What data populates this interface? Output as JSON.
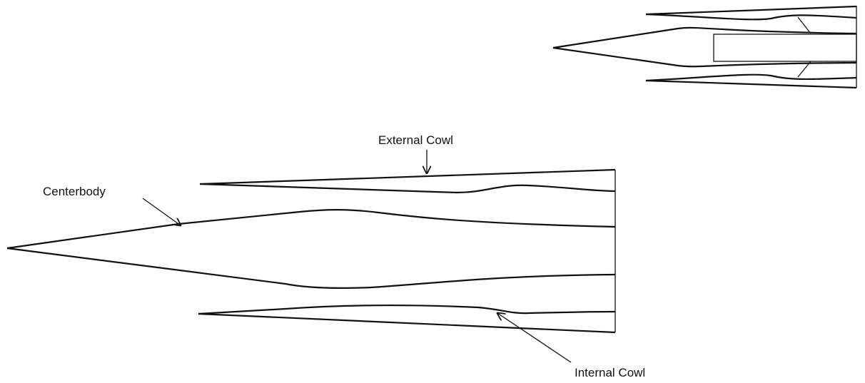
{
  "labels": {
    "external_cowl": "External Cowl",
    "centerbody": "Centerbody",
    "internal_cowl": "Internal Cowl"
  }
}
